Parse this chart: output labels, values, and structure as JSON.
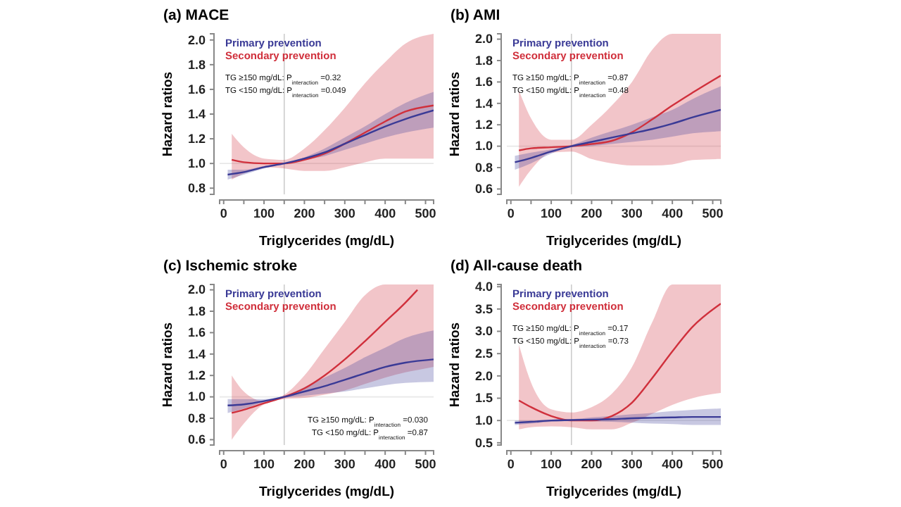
{
  "chart_data": [
    {
      "type": "line",
      "title": "(a) MACE",
      "xlabel": "Triglycerides (mg/dL)",
      "ylabel": "Hazard ratios",
      "legend": "top left",
      "xlim": [
        -10,
        520
      ],
      "ylim": [
        0.75,
        2.05
      ],
      "xticks": [
        0,
        {
          "value": 50,
          "label": null
        },
        100,
        {
          "value": 150,
          "label": null
        },
        200,
        {
          "value": 250,
          "label": null
        },
        300,
        {
          "value": 350,
          "label": null
        },
        400,
        {
          "value": 450,
          "label": null
        },
        500
      ],
      "yticks": [
        0.8,
        {
          "value": 1,
          "label": "1.0"
        },
        1.2,
        1.4,
        1.6,
        1.8,
        {
          "value": 2,
          "label": "2.0"
        }
      ],
      "ref_lines": [
        {
          "axis": "x",
          "value": 150,
          "color": "#cccccc"
        },
        {
          "axis": "y",
          "value": 1.0,
          "color": "#e8e8e8"
        }
      ],
      "annotations": [
        "TG ≥150 mg/dL: P$_{interaction}$ =0.32",
        "TG <150 mg/dL: P$_{interaction}$ =0.049"
      ],
      "series": [
        {
          "name": "Secondary prevention",
          "color": "#d0303c",
          "x": [
            20,
            50,
            100,
            150,
            200,
            250,
            300,
            350,
            400,
            450,
            520
          ],
          "values": [
            1.03,
            1.01,
            1.0,
            1.0,
            1.03,
            1.08,
            1.16,
            1.25,
            1.34,
            1.42,
            1.47
          ],
          "lower": [
            0.87,
            0.92,
            0.97,
            0.96,
            0.94,
            0.94,
            0.97,
            1.01,
            1.04,
            1.04,
            1.04
          ],
          "upper": [
            1.24,
            1.13,
            1.04,
            1.03,
            1.12,
            1.27,
            1.45,
            1.65,
            1.82,
            1.97,
            2.05
          ]
        },
        {
          "name": "Primary prevention",
          "color": "#3a3a96",
          "x": [
            10,
            50,
            100,
            150,
            200,
            250,
            300,
            350,
            400,
            450,
            520
          ],
          "values": [
            0.91,
            0.93,
            0.97,
            1.0,
            1.04,
            1.09,
            1.16,
            1.23,
            1.3,
            1.36,
            1.43
          ],
          "lower": [
            0.87,
            0.91,
            0.96,
            1.0,
            1.03,
            1.06,
            1.11,
            1.16,
            1.21,
            1.25,
            1.29
          ],
          "upper": [
            0.95,
            0.95,
            0.98,
            1.0,
            1.05,
            1.12,
            1.21,
            1.3,
            1.4,
            1.49,
            1.58
          ]
        }
      ]
    },
    {
      "type": "line",
      "title": "(b) AMI",
      "xlabel": "Triglycerides (mg/dL)",
      "ylabel": "Hazard ratios",
      "legend": "top left",
      "xlim": [
        -10,
        520
      ],
      "ylim": [
        0.55,
        2.05
      ],
      "xticks": [
        0,
        {
          "value": 50,
          "label": null
        },
        100,
        {
          "value": 150,
          "label": null
        },
        200,
        {
          "value": 250,
          "label": null
        },
        300,
        {
          "value": 350,
          "label": null
        },
        400,
        {
          "value": 450,
          "label": null
        },
        500
      ],
      "yticks": [
        0.6,
        0.8,
        {
          "value": 1,
          "label": "1.0"
        },
        1.2,
        1.4,
        1.6,
        1.8,
        {
          "value": 2,
          "label": "2.0"
        }
      ],
      "ref_lines": [
        {
          "axis": "x",
          "value": 150,
          "color": "#cccccc"
        },
        {
          "axis": "y",
          "value": 1.0,
          "color": "#e8e8e8"
        }
      ],
      "annotations": [
        "TG ≥150 mg/dL: P$_{interaction}$ =0.87",
        "TG <150 mg/dL: P$_{interaction}$ =0.48"
      ],
      "series": [
        {
          "name": "Secondary prevention",
          "color": "#d0303c",
          "x": [
            20,
            50,
            100,
            150,
            200,
            250,
            300,
            350,
            400,
            450,
            520
          ],
          "values": [
            0.96,
            0.98,
            0.99,
            1.0,
            1.02,
            1.05,
            1.13,
            1.25,
            1.38,
            1.5,
            1.66
          ],
          "lower": [
            0.62,
            0.78,
            0.94,
            0.95,
            0.88,
            0.84,
            0.82,
            0.82,
            0.83,
            0.87,
            0.88
          ],
          "upper": [
            1.52,
            1.26,
            1.06,
            1.06,
            1.2,
            1.38,
            1.6,
            1.9,
            2.05,
            2.05,
            2.05
          ]
        },
        {
          "name": "Primary prevention",
          "color": "#3a3a96",
          "x": [
            10,
            50,
            100,
            150,
            200,
            250,
            300,
            350,
            400,
            450,
            520
          ],
          "values": [
            0.85,
            0.89,
            0.95,
            1.0,
            1.04,
            1.08,
            1.12,
            1.16,
            1.21,
            1.27,
            1.34
          ],
          "lower": [
            0.78,
            0.84,
            0.93,
            0.99,
            1.0,
            1.02,
            1.04,
            1.06,
            1.09,
            1.12,
            1.14
          ],
          "upper": [
            0.91,
            0.94,
            0.97,
            1.01,
            1.08,
            1.14,
            1.2,
            1.27,
            1.34,
            1.44,
            1.56
          ]
        }
      ]
    },
    {
      "type": "line",
      "title": "(c) Ischemic stroke",
      "xlabel": "Triglycerides (mg/dL)",
      "ylabel": "Hazard ratios",
      "legend": "top left",
      "xlim": [
        -10,
        520
      ],
      "ylim": [
        0.55,
        2.05
      ],
      "xticks": [
        0,
        {
          "value": 50,
          "label": null
        },
        100,
        {
          "value": 150,
          "label": null
        },
        200,
        {
          "value": 250,
          "label": null
        },
        300,
        {
          "value": 350,
          "label": null
        },
        400,
        {
          "value": 450,
          "label": null
        },
        500
      ],
      "yticks": [
        0.6,
        0.8,
        {
          "value": 1,
          "label": "1.0"
        },
        1.2,
        1.4,
        1.6,
        1.8,
        {
          "value": 2,
          "label": "2.0"
        }
      ],
      "ref_lines": [
        {
          "axis": "x",
          "value": 150,
          "color": "#cccccc"
        },
        {
          "axis": "y",
          "value": 1.0,
          "color": "#e8e8e8"
        }
      ],
      "annotations": [
        "TG ≥150 mg/dL: P$_{interaction}$ =0.030",
        "TG <150 mg/dL: P$_{interaction}$ =0.87"
      ],
      "series": [
        {
          "name": "Secondary prevention",
          "color": "#d0303c",
          "x": [
            20,
            50,
            100,
            150,
            200,
            250,
            300,
            350,
            400,
            450,
            480,
            520
          ],
          "values": [
            0.85,
            0.88,
            0.94,
            1.0,
            1.08,
            1.2,
            1.35,
            1.52,
            1.7,
            1.88,
            2.0,
            null
          ],
          "lower": [
            0.6,
            0.75,
            0.93,
            0.98,
            0.99,
            1.02,
            1.06,
            1.12,
            1.18,
            1.23,
            1.25,
            1.28
          ],
          "upper": [
            1.2,
            1.05,
            0.96,
            1.02,
            1.2,
            1.45,
            1.7,
            1.95,
            2.05,
            2.05,
            2.05,
            2.05
          ]
        },
        {
          "name": "Primary prevention",
          "color": "#3a3a96",
          "x": [
            10,
            50,
            100,
            150,
            200,
            250,
            300,
            350,
            400,
            450,
            520
          ],
          "values": [
            0.92,
            0.93,
            0.96,
            1.0,
            1.05,
            1.1,
            1.16,
            1.22,
            1.28,
            1.32,
            1.35
          ],
          "lower": [
            0.85,
            0.89,
            0.95,
            0.99,
            1.01,
            1.03,
            1.05,
            1.08,
            1.11,
            1.13,
            1.14
          ],
          "upper": [
            0.98,
            0.98,
            0.98,
            1.01,
            1.09,
            1.18,
            1.27,
            1.37,
            1.46,
            1.55,
            1.62
          ]
        }
      ]
    },
    {
      "type": "line",
      "title": "(d) All-cause death",
      "xlabel": "Triglycerides (mg/dL)",
      "ylabel": "Hazard ratios",
      "legend": "top left",
      "xlim": [
        -10,
        520
      ],
      "ylim": [
        0.45,
        4.05
      ],
      "xticks": [
        0,
        {
          "value": 50,
          "label": null
        },
        100,
        {
          "value": 150,
          "label": null
        },
        200,
        {
          "value": 250,
          "label": null
        },
        300,
        {
          "value": 350,
          "label": null
        },
        400,
        {
          "value": 450,
          "label": null
        },
        500
      ],
      "yticks": [
        0.5,
        {
          "value": 1,
          "label": "1.0"
        },
        1.5,
        {
          "value": 2,
          "label": "2.0"
        },
        2.5,
        {
          "value": 3,
          "label": "3.0"
        },
        3.5,
        {
          "value": 4,
          "label": "4.0"
        }
      ],
      "ref_lines": [
        {
          "axis": "x",
          "value": 150,
          "color": "#cccccc"
        },
        {
          "axis": "y",
          "value": 1.0,
          "color": "#e8e8e8"
        }
      ],
      "annotations": [
        "TG ≥150 mg/dL: P$_{interaction}$ =0.17",
        "TG <150 mg/dL: P$_{interaction}$ =0.73"
      ],
      "series": [
        {
          "name": "Secondary prevention",
          "color": "#d0303c",
          "x": [
            20,
            50,
            100,
            150,
            200,
            250,
            300,
            350,
            400,
            450,
            520
          ],
          "values": [
            1.45,
            1.3,
            1.1,
            1.0,
            1.0,
            1.1,
            1.4,
            1.95,
            2.55,
            3.1,
            3.62
          ],
          "lower": [
            0.8,
            0.85,
            0.87,
            0.85,
            0.8,
            0.8,
            0.95,
            1.15,
            1.35,
            1.5,
            1.62
          ],
          "upper": [
            2.7,
            1.85,
            1.25,
            1.18,
            1.3,
            1.6,
            2.2,
            3.2,
            4.05,
            4.05,
            4.05
          ]
        },
        {
          "name": "Primary prevention",
          "color": "#3a3a96",
          "x": [
            10,
            50,
            100,
            150,
            200,
            250,
            300,
            350,
            400,
            450,
            520
          ],
          "values": [
            0.95,
            0.97,
            1.0,
            1.01,
            1.02,
            1.03,
            1.05,
            1.06,
            1.07,
            1.08,
            1.08
          ],
          "lower": [
            0.9,
            0.93,
            0.97,
            0.99,
            0.98,
            0.97,
            0.95,
            0.93,
            0.92,
            0.9,
            0.9
          ],
          "upper": [
            1.0,
            1.0,
            1.02,
            1.03,
            1.07,
            1.1,
            1.14,
            1.17,
            1.21,
            1.24,
            1.27
          ]
        }
      ]
    }
  ]
}
